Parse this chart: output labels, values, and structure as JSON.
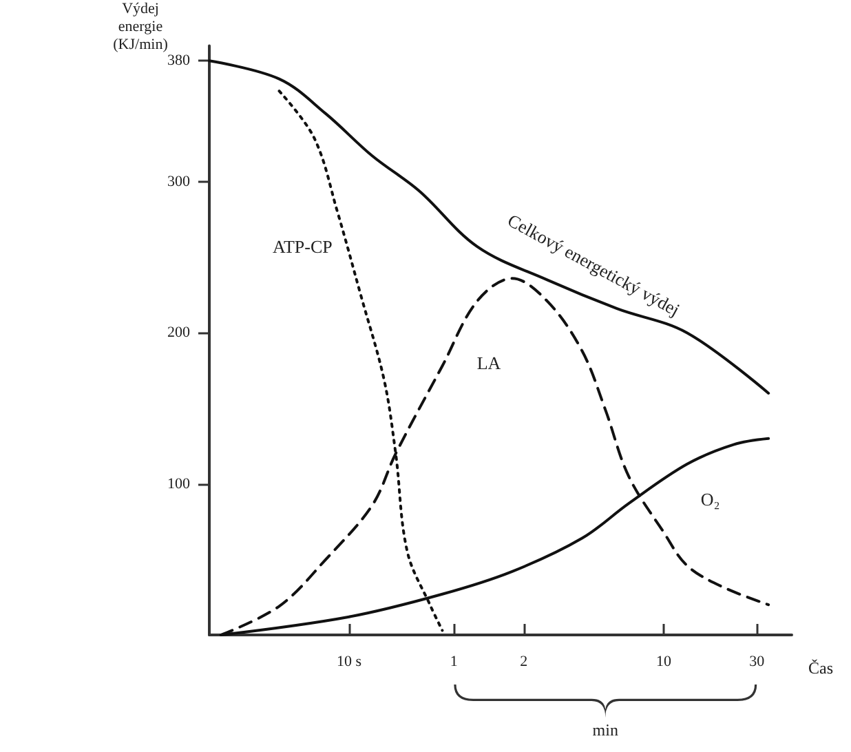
{
  "chart_data": {
    "type": "line",
    "ylabel": "Výdej energie (KJ/min)",
    "xlabel": "Čas",
    "annotations": [
      "min"
    ],
    "categories": [
      null,
      null,
      null,
      null,
      null,
      null,
      null,
      null,
      null,
      null,
      null,
      null,
      "10 s",
      null,
      null,
      null,
      null,
      null,
      null,
      null,
      null,
      "1",
      null,
      null,
      null,
      null,
      null,
      "2",
      null,
      null,
      null,
      null,
      null,
      null,
      null,
      null,
      null,
      null,
      null,
      "10",
      null,
      null,
      null,
      null,
      null,
      null,
      null,
      "30",
      null,
      null,
      null
    ],
    "ylim": [
      0,
      390
    ],
    "yticks": [
      100,
      200,
      300,
      380
    ],
    "grid": false,
    "legend": false,
    "marker": "none",
    "series": [
      {
        "name": "Celkový energetický výdej",
        "color": "#111111",
        "line_style": "solid",
        "values": [
          380,
          null,
          null,
          null,
          null,
          null,
          368,
          null,
          null,
          null,
          345,
          null,
          null,
          null,
          317,
          null,
          null,
          null,
          294,
          null,
          null,
          null,
          null,
          257,
          null,
          null,
          null,
          null,
          null,
          235,
          null,
          null,
          null,
          null,
          null,
          216,
          null,
          null,
          null,
          null,
          null,
          200,
          null,
          null,
          null,
          null,
          null,
          null,
          160,
          null,
          null
        ]
      },
      {
        "name": "ATP-CP",
        "color": "#111111",
        "line_style": "dotted",
        "values": [
          null,
          null,
          null,
          null,
          null,
          null,
          360,
          null,
          null,
          329,
          null,
          280,
          null,
          225,
          null,
          169,
          120,
          55,
          null,
          19,
          3,
          null,
          null,
          null,
          null,
          null,
          null,
          null,
          null,
          null,
          null,
          null,
          null,
          null,
          null,
          null,
          null,
          null,
          null,
          null,
          null,
          null,
          null,
          null,
          null,
          null,
          null,
          null,
          null,
          null,
          null
        ]
      },
      {
        "name": "LA",
        "color": "#111111",
        "line_style": "dashed",
        "values": [
          null,
          0,
          null,
          null,
          null,
          null,
          19,
          null,
          null,
          null,
          50,
          null,
          null,
          null,
          86,
          null,
          120,
          null,
          null,
          null,
          178,
          null,
          null,
          221,
          null,
          null,
          236,
          null,
          null,
          221,
          null,
          null,
          188,
          null,
          149,
          null,
          105,
          null,
          null,
          68,
          null,
          46,
          null,
          null,
          32,
          null,
          null,
          null,
          20,
          null,
          null
        ]
      },
      {
        "name": "O₂",
        "color": "#111111",
        "line_style": "solid",
        "values": [
          null,
          0,
          null,
          null,
          null,
          null,
          null,
          null,
          null,
          null,
          null,
          null,
          12,
          null,
          null,
          null,
          null,
          null,
          null,
          null,
          27,
          null,
          null,
          null,
          null,
          null,
          42,
          null,
          null,
          null,
          null,
          null,
          64,
          null,
          null,
          null,
          87,
          null,
          null,
          null,
          null,
          113,
          null,
          null,
          null,
          126,
          null,
          null,
          130,
          null,
          null
        ]
      }
    ]
  }
}
